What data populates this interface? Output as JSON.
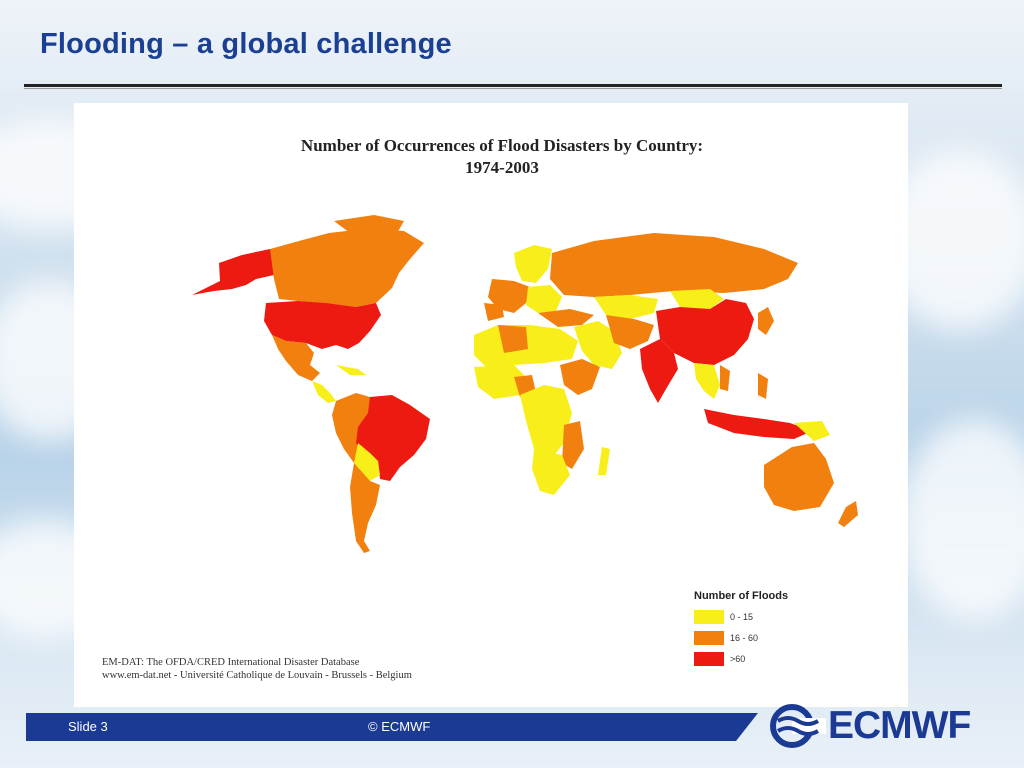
{
  "slide": {
    "title": "Flooding – a global challenge",
    "number_label": "Slide 3",
    "copyright": "© ECMWF",
    "logo_text": "ECMWF"
  },
  "figure": {
    "title_line1": "Number of Occurrences of Flood Disasters by Country:",
    "title_line2": "1974-2003",
    "legend": {
      "title": "Number of Floods",
      "items": [
        {
          "label": "0 - 15",
          "color": "#f7ee1a"
        },
        {
          "label": "16 - 60",
          "color": "#f1800e"
        },
        {
          "label": ">60",
          "color": "#ec1a10"
        }
      ]
    },
    "source_line1": "EM-DAT: The OFDA/CRED International Disaster Database",
    "source_line2": "www.em-dat.net - Université Catholique de Louvain - Brussels - Belgium"
  },
  "colors": {
    "title": "#1b3f92",
    "footer_bar": "#1b3a93",
    "low": "#f7ee1a",
    "mid": "#f1800e",
    "high": "#ec1a10"
  }
}
